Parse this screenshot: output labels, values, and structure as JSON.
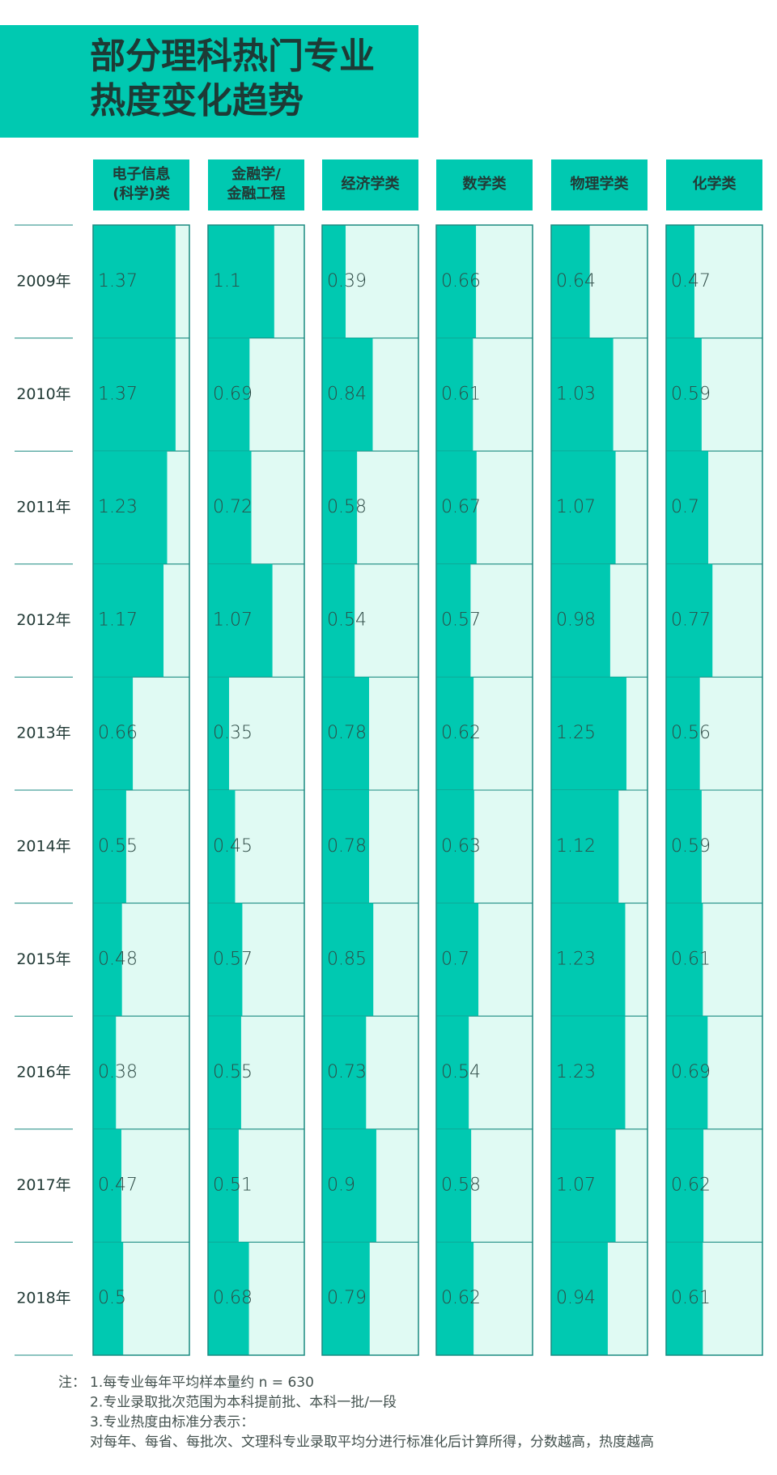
{
  "chart_data": {
    "type": "bar",
    "title": [
      "部分理科热门专业",
      "热度变化趋势"
    ],
    "categories": [
      "2009年",
      "2010年",
      "2011年",
      "2012年",
      "2013年",
      "2014年",
      "2015年",
      "2016年",
      "2017年",
      "2018年"
    ],
    "xlim": [
      0,
      1.6
    ],
    "color": "#00c9b1",
    "series": [
      {
        "name": "电子信息\n(科学)类",
        "color": "#00c9b1",
        "values": [
          1.37,
          1.37,
          1.23,
          1.17,
          0.66,
          0.55,
          0.48,
          0.38,
          0.47,
          0.5
        ]
      },
      {
        "name": "金融学/\n金融工程",
        "color": "#00c9b1",
        "values": [
          1.1,
          0.69,
          0.72,
          1.07,
          0.35,
          0.45,
          0.57,
          0.55,
          0.51,
          0.68
        ]
      },
      {
        "name": "经济学类",
        "color": "#00c9b1",
        "values": [
          0.39,
          0.84,
          0.58,
          0.54,
          0.78,
          0.78,
          0.85,
          0.73,
          0.9,
          0.79
        ]
      },
      {
        "name": "数学类",
        "color": "#00c9b1",
        "values": [
          0.66,
          0.61,
          0.67,
          0.57,
          0.62,
          0.63,
          0.7,
          0.54,
          0.58,
          0.62
        ]
      },
      {
        "name": "物理学类",
        "color": "#00c9b1",
        "values": [
          0.64,
          1.03,
          1.07,
          0.98,
          1.25,
          1.12,
          1.23,
          1.23,
          1.07,
          0.94
        ]
      },
      {
        "name": "化学类",
        "color": "#00c9b1",
        "values": [
          0.47,
          0.59,
          0.7,
          0.77,
          0.56,
          0.59,
          0.61,
          0.69,
          0.62,
          0.61
        ]
      }
    ],
    "note_label": "注：",
    "notes": [
      "1.每专业每年平均样本量约 n = 630",
      "2.专业录取批次范围为本科提前批、本科一批/一段",
      "3.专业热度由标准分表示：",
      "对每年、每省、每批次、文理科专业录取平均分进行标准化后计算所得，分数越高，热度越高"
    ]
  }
}
